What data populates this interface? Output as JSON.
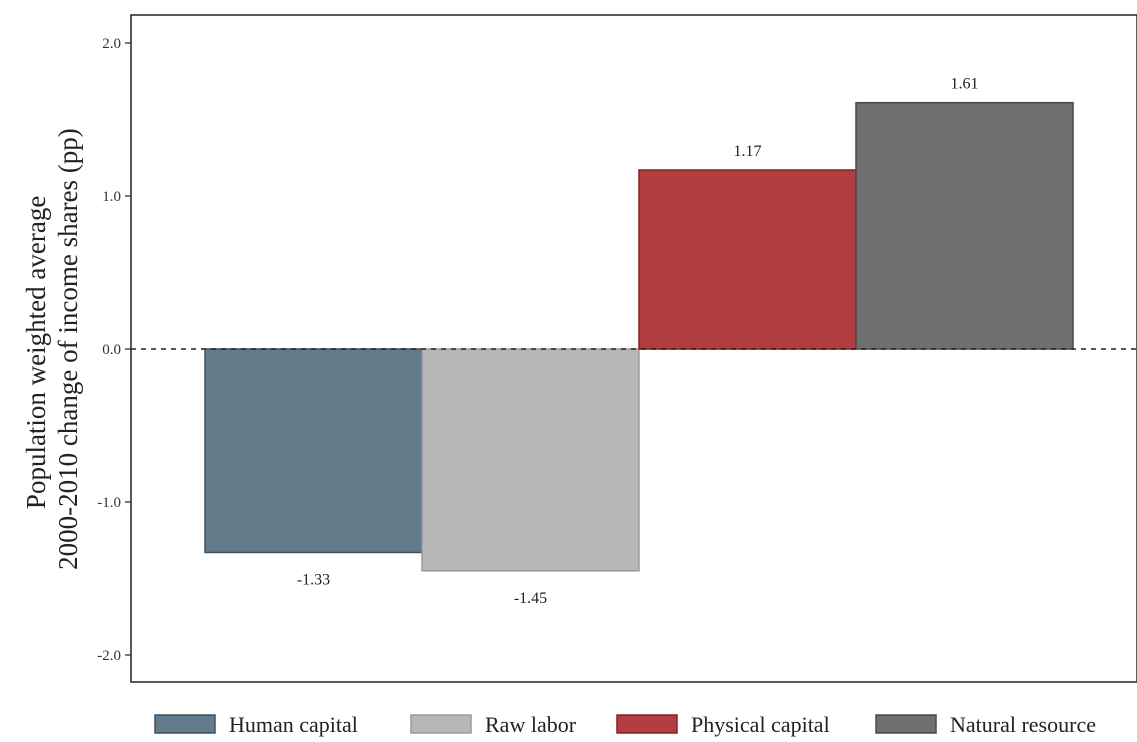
{
  "chart_data": {
    "type": "bar",
    "categories": [
      "Human capital",
      "Raw labor",
      "Physical capital",
      "Natural resource"
    ],
    "values": [
      -1.33,
      -1.45,
      1.17,
      1.61
    ],
    "data_labels": [
      "-1.33",
      "-1.45",
      "1.17",
      "1.61"
    ],
    "colors": [
      "#647b8a",
      "#b7b7b7",
      "#b03d40",
      "#6f6f6f"
    ],
    "stroke_colors": [
      "#3d5060",
      "#9a9a9a",
      "#8a1f22",
      "#4a4a4a"
    ],
    "ylabel_lines": [
      "Population weighted average",
      "2000-2010 change of income shares (pp)"
    ],
    "ylim": [
      -2.2,
      2.2
    ],
    "yticks": [
      2.0,
      1.0,
      0.0,
      -1.0,
      -2.0
    ],
    "ytick_labels": [
      "2.0",
      "1.0",
      "0.0",
      "-1.0",
      "-2.0"
    ],
    "zero_line": "dashed",
    "grid": false,
    "legend": {
      "placement": "bottom",
      "entries": [
        "Human capital",
        "Raw labor",
        "Physical capital",
        "Natural resource"
      ]
    }
  }
}
